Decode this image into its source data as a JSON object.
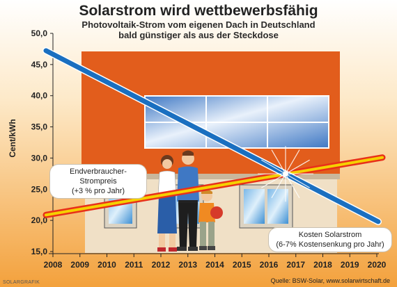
{
  "header": {
    "title": "Solarstrom wird wettbewerbsfähig",
    "subtitle_line1": "Photovoltaik-Strom vom eigenen Dach in Deutschland",
    "subtitle_line2": "bald günstiger als aus der Steckdose"
  },
  "chart_data": {
    "type": "line",
    "title": "Solarstrom wird wettbewerbsfähig",
    "subtitle": "Photovoltaik-Strom vom eigenen Dach in Deutschland bald günstiger als aus der Steckdose",
    "xlabel": "",
    "ylabel": "Cent/kWh",
    "x": [
      2008,
      2009,
      2010,
      2011,
      2012,
      2013,
      2014,
      2015,
      2016,
      2017,
      2018,
      2019,
      2020
    ],
    "x_tick_labels": [
      "2008",
      "2009",
      "2010",
      "2011",
      "2012",
      "2013",
      "2014",
      "2015",
      "2016",
      "2017",
      "2018",
      "2019",
      "2020"
    ],
    "y_tick_labels": [
      "15,0",
      "20,0",
      "25,0",
      "30,0",
      "35,0",
      "40,0",
      "45,0",
      "50,0"
    ],
    "ylim": [
      15,
      50
    ],
    "xlim": [
      2008,
      2020
    ],
    "grid": false,
    "series": [
      {
        "name": "Kosten Solarstrom",
        "color": "#1a6fc0",
        "x": [
          2008,
          2020
        ],
        "values": [
          47.0,
          19.8
        ]
      },
      {
        "name": "Endverbraucher-Strompreis",
        "color": "#e8301a",
        "x": [
          2008,
          2020
        ],
        "values": [
          21.0,
          30.0
        ]
      }
    ],
    "annotations": [
      {
        "label_line1": "Endverbraucher-Strompreis",
        "label_line2": "(+3 % pro Jahr)"
      },
      {
        "label_line1": "Kosten Solarstrom",
        "label_line2": "(6-7% Kostensenkung pro Jahr)"
      }
    ]
  },
  "colors": {
    "background_top": "#ffffff",
    "background_bottom": "#f3a13c",
    "house_orange": "#e25d1c",
    "solar_line": "#1a6fc0",
    "price_line_fill": "#f5d000",
    "price_line_border": "#e8301a"
  },
  "footer": {
    "credit": "SOLARGRAFIK",
    "source": "Quelle: BSW-Solar, www.solarwirtschaft.de"
  }
}
